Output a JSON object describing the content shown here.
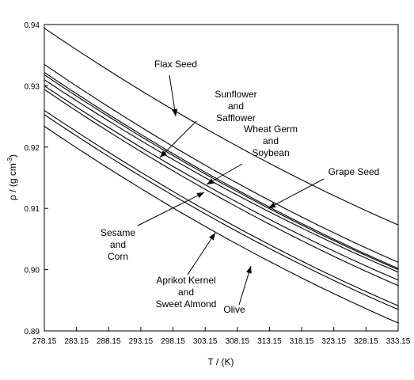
{
  "chart_data": {
    "type": "line",
    "title": "",
    "xlabel": "T / (K)",
    "ylabel": "ρ / (g cm⁻³)",
    "ylabel_parts": {
      "main": "ρ / (g cm",
      "sup": "-3",
      "close": ")"
    },
    "xlim": [
      278.15,
      333.15
    ],
    "ylim": [
      0.89,
      0.94
    ],
    "grid": false,
    "x_ticks": [
      "278.15",
      "283.15",
      "288.15",
      "293.15",
      "298.15",
      "303.15",
      "308.15",
      "313.15",
      "318.15",
      "323.15",
      "328.15",
      "333.15"
    ],
    "y_ticks": [
      "0.89",
      "0.90",
      "0.91",
      "0.92",
      "0.93",
      "0.94"
    ],
    "x": [
      278.15,
      333.15
    ],
    "series": [
      {
        "values": [
          0.9394,
          0.9073
        ]
      },
      {
        "values": [
          0.9335,
          0.9012
        ]
      },
      {
        "values": [
          0.9322,
          0.9002
        ]
      },
      {
        "values": [
          0.9318,
          0.9
        ]
      },
      {
        "values": [
          0.931,
          0.8996
        ]
      },
      {
        "values": [
          0.93,
          0.8983
        ]
      },
      {
        "values": [
          0.9294,
          0.8974
        ]
      },
      {
        "values": [
          0.926,
          0.8941
        ]
      },
      {
        "values": [
          0.9253,
          0.8935
        ]
      },
      {
        "values": [
          0.9234,
          0.8913
        ]
      }
    ],
    "annotations": [
      {
        "lines": [
          "Flax Seed"
        ],
        "anchor": "middle"
      },
      {
        "lines": [
          "Sunflower",
          "and",
          "Safflower"
        ],
        "anchor": "middle"
      },
      {
        "lines": [
          "Wheat Germ",
          "and",
          "Soybean"
        ],
        "anchor": "middle"
      },
      {
        "lines": [
          "Grape Seed"
        ],
        "anchor": "middle"
      },
      {
        "lines": [
          "Sesame",
          "and",
          "Corn"
        ],
        "anchor": "middle"
      },
      {
        "lines": [
          "Aprikot Kernel",
          "and",
          "Sweet Almond"
        ],
        "anchor": "middle"
      },
      {
        "lines": [
          "Olive"
        ],
        "anchor": "middle"
      }
    ]
  }
}
